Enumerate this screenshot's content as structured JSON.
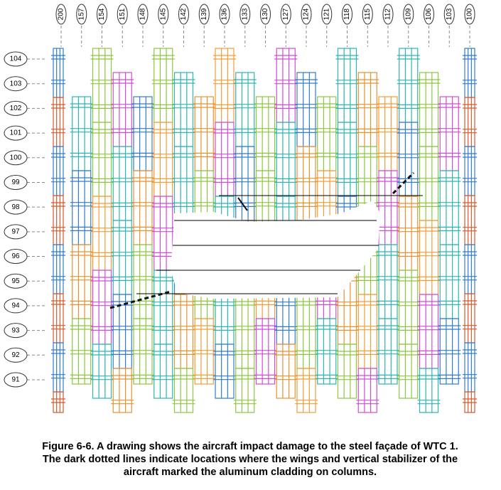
{
  "columns": [
    "200",
    "157",
    "154",
    "151",
    "148",
    "145",
    "142",
    "139",
    "136",
    "133",
    "130",
    "127",
    "124",
    "121",
    "118",
    "115",
    "112",
    "109",
    "106",
    "103",
    "100"
  ],
  "floors": [
    "104",
    "103",
    "102",
    "101",
    "100",
    "99",
    "98",
    "97",
    "96",
    "95",
    "94",
    "93",
    "92",
    "91"
  ],
  "caption": [
    "Figure 6-6.  A drawing shows the aircraft impact damage to the steel façade of WTC 1.",
    "The dark dotted lines indicate locations where the wings and vertical stabilizer of the",
    "aircraft marked the aluminum cladding on columns."
  ]
}
